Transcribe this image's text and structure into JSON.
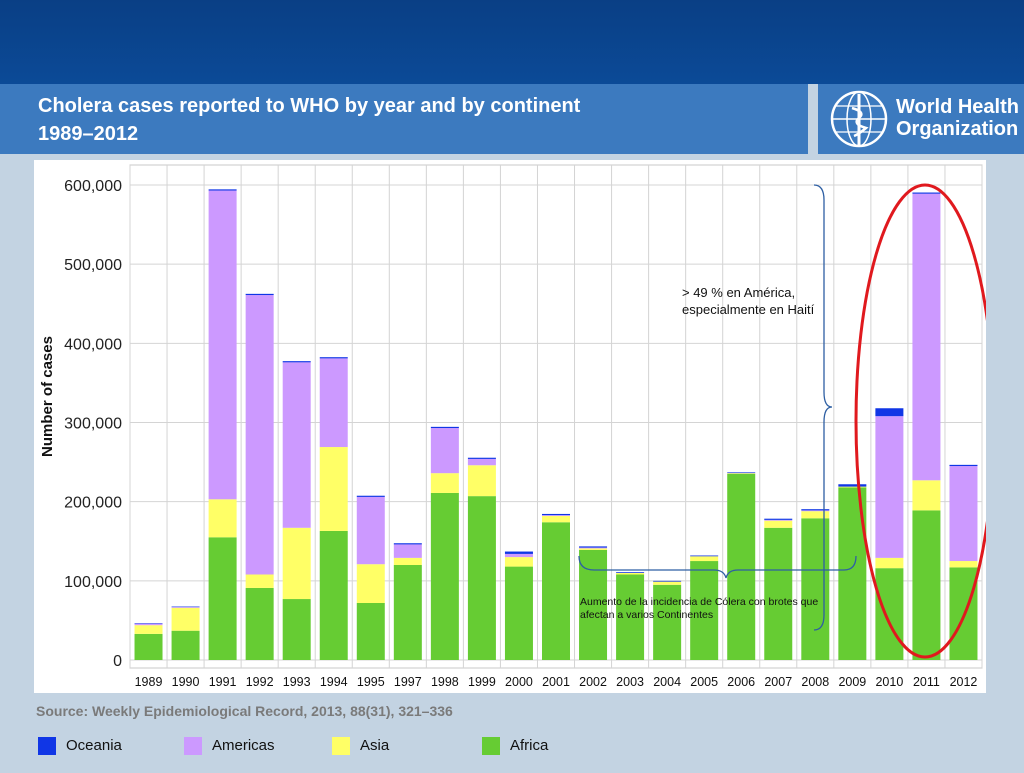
{
  "header": {
    "title_line1": "Cholera cases reported to WHO by year and by continent",
    "title_line2": "1989–2012",
    "logo_line1": "World Health",
    "logo_line2": "Organization"
  },
  "source_text": "Source: Weekly Epidemiological Record, 2013, 88(31), 321–336",
  "colors": {
    "Oceania": "#1036e6",
    "Americas": "#cc99ff",
    "Asia": "#ffff66",
    "Africa": "#66cc33",
    "highlight": "#e0191e",
    "brace": "#2e5fa3"
  },
  "annotations": {
    "americas_note": "> 49 % en América, especialmente en Haití",
    "incidence_note": "Aumento de la incidencia de Cólera con brotes que afectan a varios Continentes"
  },
  "chart_data": {
    "type": "bar",
    "stacked": true,
    "title": "",
    "xlabel": "",
    "ylabel": "Number of cases",
    "ylim": [
      0,
      600000
    ],
    "yticks": [
      0,
      100000,
      200000,
      300000,
      400000,
      500000,
      600000
    ],
    "ytick_labels": [
      "0",
      "100,000",
      "200,000",
      "300,000",
      "400,000",
      "500,000",
      "600,000"
    ],
    "grid": true,
    "legend_position": "bottom",
    "categories": [
      "1989",
      "1990",
      "1991",
      "1992",
      "1993",
      "1994",
      "1995",
      "1997",
      "1998",
      "1999",
      "2000",
      "2001",
      "2002",
      "2003",
      "2004",
      "2005",
      "2006",
      "2007",
      "2008",
      "2009",
      "2010",
      "2011",
      "2012"
    ],
    "series": [
      {
        "name": "Africa",
        "values": [
          33000,
          37000,
          155000,
          91000,
          77000,
          163000,
          72000,
          120000,
          211000,
          207000,
          118000,
          174000,
          139000,
          108000,
          95000,
          125000,
          235000,
          167000,
          179000,
          218000,
          116000,
          189000,
          117000
        ]
      },
      {
        "name": "Asia",
        "values": [
          11000,
          29000,
          48000,
          17000,
          90000,
          106000,
          49000,
          9000,
          25000,
          39000,
          12000,
          8000,
          2000,
          2000,
          4000,
          6000,
          1000,
          9000,
          9000,
          1000,
          13000,
          38000,
          8000
        ]
      },
      {
        "name": "Americas",
        "values": [
          2000,
          1000,
          390000,
          353000,
          209000,
          112000,
          85000,
          17000,
          57000,
          8000,
          4000,
          1000,
          1000,
          0,
          0,
          0,
          0,
          1000,
          1000,
          0,
          179000,
          362000,
          120000
        ]
      },
      {
        "name": "Oceania",
        "values": [
          500,
          500,
          1500,
          1500,
          1500,
          1500,
          1500,
          1500,
          1500,
          1500,
          3000,
          1500,
          1500,
          1000,
          1000,
          1000,
          1000,
          1500,
          1500,
          3000,
          10000,
          1500,
          1500
        ]
      }
    ]
  },
  "legend": [
    {
      "name": "Oceania"
    },
    {
      "name": "Americas"
    },
    {
      "name": "Asia"
    },
    {
      "name": "Africa"
    }
  ]
}
